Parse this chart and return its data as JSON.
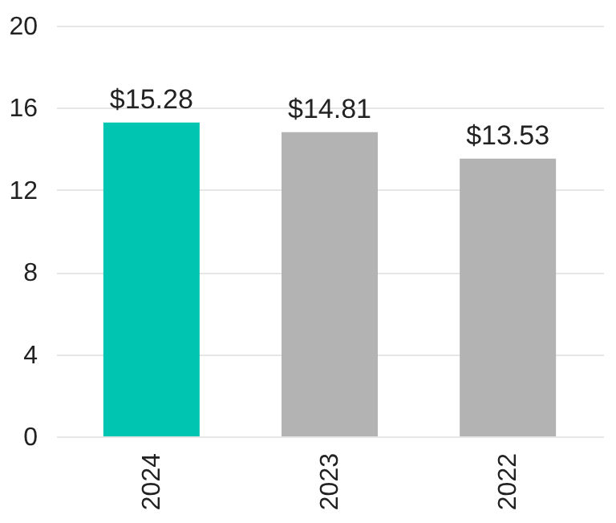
{
  "chart_data": {
    "type": "bar",
    "categories": [
      "2024",
      "2023",
      "2022"
    ],
    "values": [
      15.28,
      14.81,
      13.53
    ],
    "colors": [
      "#00c5b0",
      "#b3b3b3",
      "#b3b3b3"
    ],
    "value_labels": [
      "$15.28",
      "$14.81",
      "$13.53"
    ],
    "ylim": [
      0,
      20
    ],
    "yticks": [
      0,
      4,
      8,
      12,
      16,
      20
    ],
    "grid": "y"
  }
}
